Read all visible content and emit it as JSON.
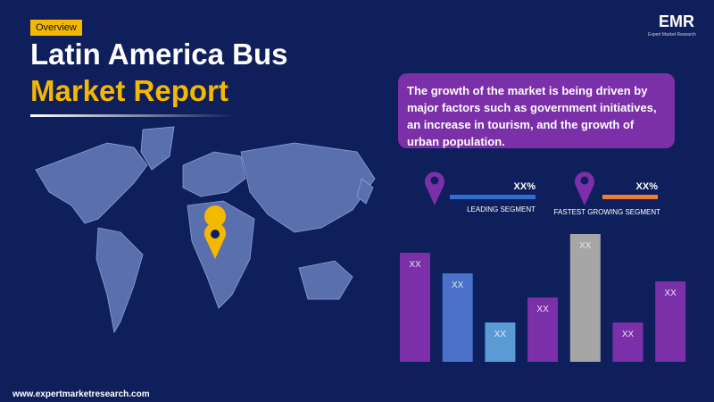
{
  "badge": "Overview",
  "title": {
    "line1": "Latin America Bus",
    "line2": "Market Report"
  },
  "logo": {
    "text": "EMR",
    "tagline": "Expert Market Research"
  },
  "description": "The growth of the market is being driven by major factors such as government initiatives, an increase in tourism, and the growth of urban population.",
  "segments": [
    {
      "value_label": "XX%",
      "label": "LEADING SEGMENT"
    },
    {
      "value_label": "XX%",
      "label": "FASTEST GROWING SEGMENT"
    }
  ],
  "website": "www.expertmarketresearch.com",
  "chart_data": {
    "type": "bar",
    "values": [
      122,
      99,
      44,
      72,
      143,
      44,
      90
    ],
    "value_labels": [
      "XX",
      "XX",
      "XX",
      "XX",
      "XX",
      "XX",
      "XX"
    ],
    "colors": [
      "#7b2fa8",
      "#4a72c8",
      "#5b9bd5",
      "#7b2fa8",
      "#a6a6a6",
      "#7b2fa8",
      "#7b2fa8"
    ]
  }
}
